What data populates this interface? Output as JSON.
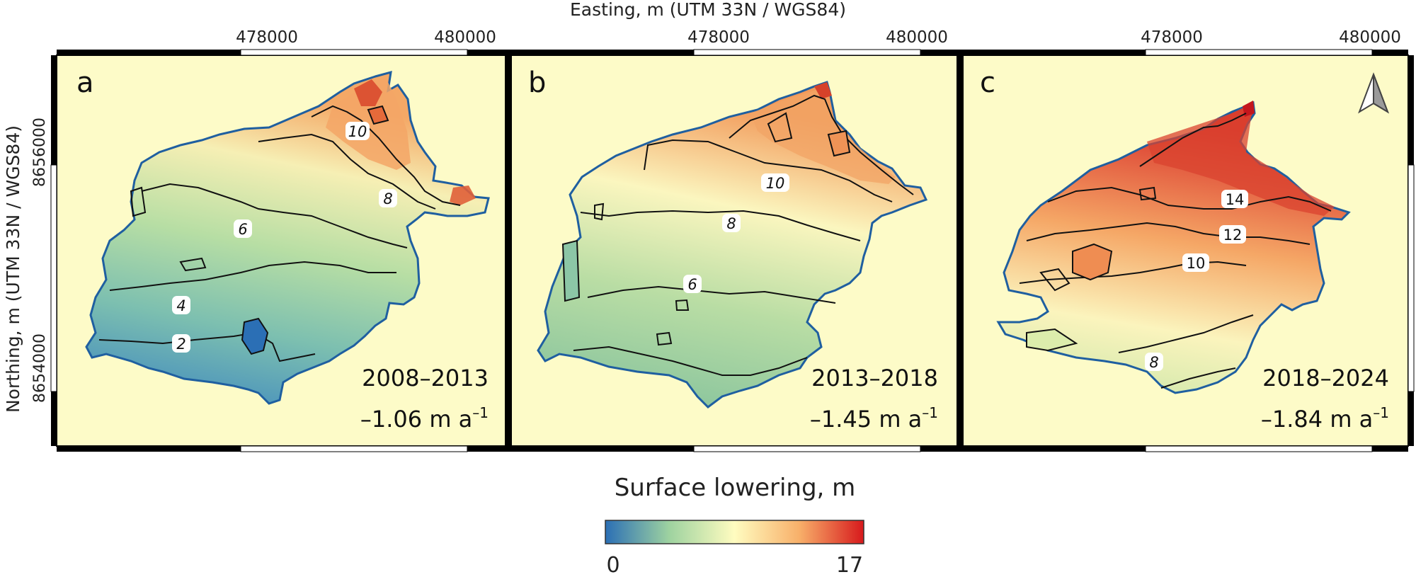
{
  "axes": {
    "easting_title": "Easting, m (UTM 33N / WGS84)",
    "northing_title": "Northing, m (UTM 33N / WGS84)",
    "easting_ticks": [
      "478000",
      "480000"
    ],
    "northing_ticks": [
      "8656000",
      "8654000"
    ]
  },
  "panels": [
    {
      "letter": "a",
      "period": "2008–2013",
      "rate_value": "–1.06 m a",
      "rate_exp": "–1",
      "contour_labels": [
        "10",
        "8",
        "6",
        "4",
        "2"
      ]
    },
    {
      "letter": "b",
      "period": "2013–2018",
      "rate_value": "–1.45 m a",
      "rate_exp": "–1",
      "contour_labels": [
        "10",
        "8",
        "6"
      ]
    },
    {
      "letter": "c",
      "period": "2018–2024",
      "rate_value": "–1.84 m a",
      "rate_exp": "–1",
      "contour_labels": [
        "14",
        "12",
        "10",
        "8"
      ]
    }
  ],
  "north_arrow": "north-arrow-icon",
  "colorbar": {
    "title": "Surface lowering, m",
    "min_label": "0",
    "max_label": "17",
    "colors": [
      "#2b6fb5",
      "#9fd3a0",
      "#fffcc0",
      "#f8b06a",
      "#d7191c"
    ]
  },
  "colors": {
    "background": "#fdfbc8",
    "outline": "#1f5fa0",
    "contour": "#111111"
  }
}
